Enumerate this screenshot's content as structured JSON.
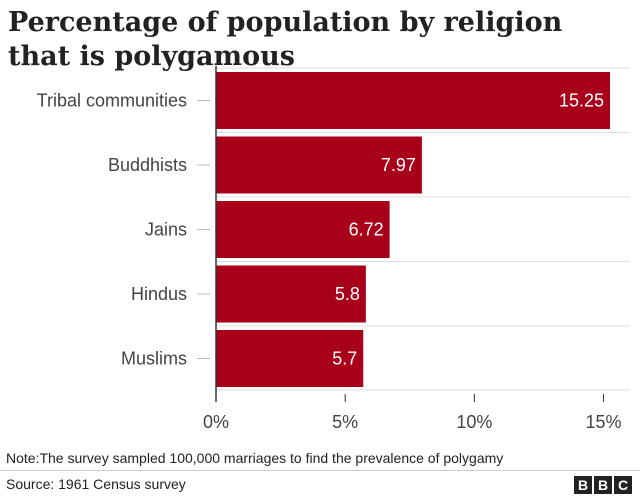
{
  "chart_data": {
    "type": "bar",
    "orientation": "horizontal",
    "title": "Percentage of population by religion that is polygamous",
    "categories": [
      "Tribal communities",
      "Buddhists",
      "Jains",
      "Hindus",
      "Muslims"
    ],
    "values": [
      15.25,
      7.97,
      6.72,
      5.8,
      5.7
    ],
    "data_labels": [
      "15.25",
      "7.97",
      "6.72",
      "5.8",
      "5.7"
    ],
    "xlim": [
      0,
      15.25
    ],
    "x_ticks": [
      0,
      5,
      10,
      15
    ],
    "x_tick_labels": [
      "0%",
      "5%",
      "10%",
      "15%"
    ],
    "grid": true,
    "legend": "none",
    "bar_color": "#a8001b",
    "label_color": "#ffffff"
  },
  "footer": {
    "note": "Note:The survey sampled 100,000 marriages to find the prevalence of polygamy",
    "source": "Source: 1961 Census survey",
    "logo_letters": [
      "B",
      "B",
      "C"
    ]
  }
}
